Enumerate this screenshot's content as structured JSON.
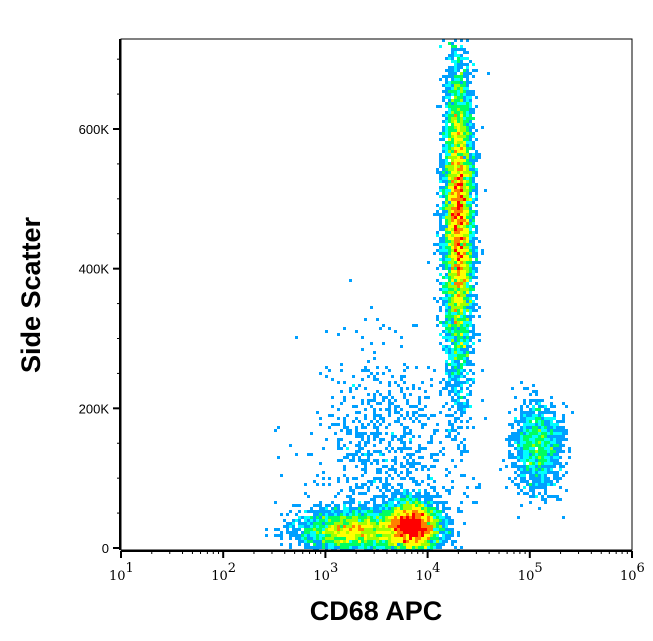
{
  "chart_data": {
    "type": "heatmap",
    "subtype": "flow-cytometry-density-dot-plot",
    "xlabel": "CD68 APC",
    "ylabel": "Side Scatter",
    "x_scale": "log",
    "xlim": [
      10,
      1100000
    ],
    "ylim": [
      0,
      727000
    ],
    "x_ticks": [
      {
        "v": 10,
        "b": "10",
        "e": "1"
      },
      {
        "v": 100,
        "b": "10",
        "e": "2"
      },
      {
        "v": 1000,
        "b": "10",
        "e": "3"
      },
      {
        "v": 10000,
        "b": "10",
        "e": "4"
      },
      {
        "v": 100000,
        "b": "10",
        "e": "5"
      },
      {
        "v": 1000000,
        "b": "10",
        "e": "6"
      }
    ],
    "y_ticks": [
      {
        "v": 0,
        "label": "0"
      },
      {
        "v": 200000,
        "label": "200K"
      },
      {
        "v": 400000,
        "label": "400K"
      },
      {
        "v": 600000,
        "label": "600K"
      }
    ],
    "grid": false,
    "colormap": [
      "#0000ff",
      "#00a0ff",
      "#00ffff",
      "#00ff60",
      "#a0ff00",
      "#ffff00",
      "#ff8000",
      "#ff0000"
    ],
    "populations": [
      {
        "x_center": 20000,
        "x_log_sd": 0.07,
        "y_center": 470000,
        "y_sd": 110000,
        "count": 9000
      },
      {
        "x_center": 7000,
        "x_log_sd": 0.14,
        "y_center": 30000,
        "y_sd": 18000,
        "count": 4500
      },
      {
        "x_center": 1800,
        "x_log_sd": 0.25,
        "y_center": 25000,
        "y_sd": 15000,
        "count": 3000
      },
      {
        "x_center": 120000,
        "x_log_sd": 0.12,
        "y_center": 145000,
        "y_sd": 30000,
        "count": 1300
      },
      {
        "x_center": 4000,
        "x_log_sd": 0.35,
        "y_center": 120000,
        "y_sd": 80000,
        "count": 900
      }
    ]
  }
}
